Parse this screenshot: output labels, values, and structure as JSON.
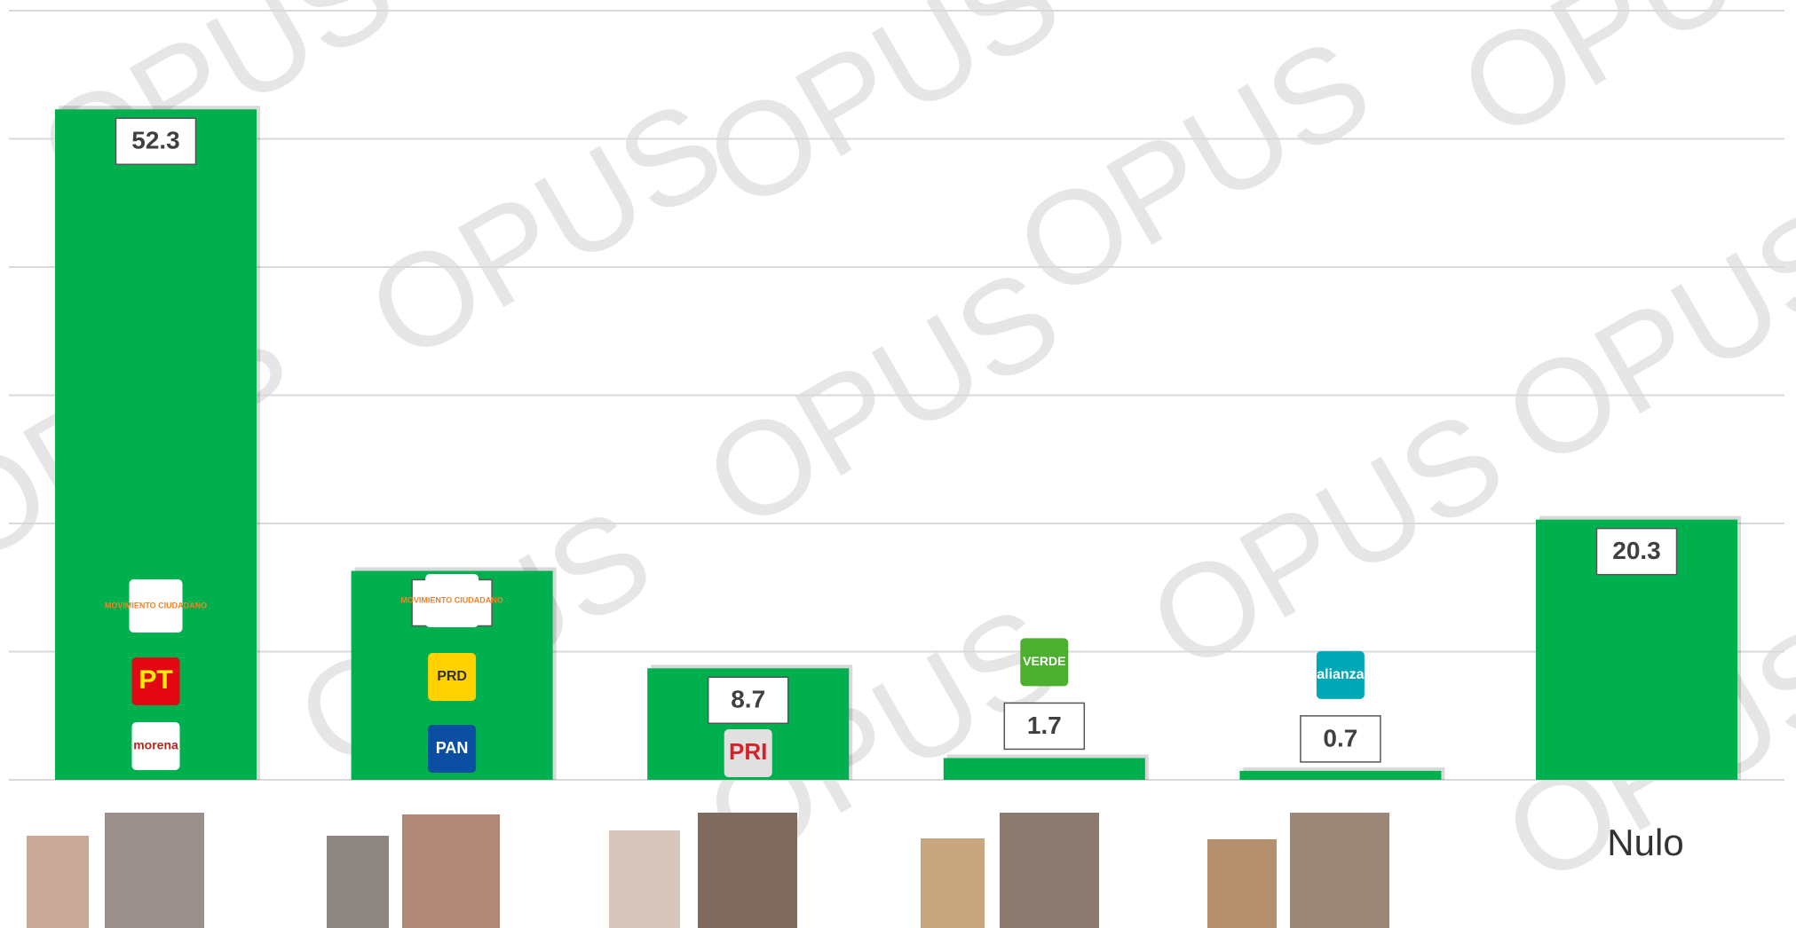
{
  "chart_data": {
    "type": "bar",
    "categories": [
      null,
      null,
      null,
      null,
      null,
      "Nulo"
    ],
    "values": [
      52.3,
      16.3,
      8.7,
      1.7,
      0.7,
      20.3
    ],
    "color": "#00b04f",
    "ylim": [
      0,
      60
    ],
    "yticks": [
      0,
      10,
      20,
      30,
      40,
      50,
      60
    ],
    "grid": true,
    "logos": [
      [
        "MOVIMIENTO CIUDADANO",
        "PT",
        "morena"
      ],
      [
        "MOVIMIENTO CIUDADANO",
        "PRD",
        "PAN"
      ],
      [
        "PRI"
      ],
      [
        "VERDE"
      ],
      [
        "alianza"
      ],
      []
    ],
    "watermark": "OPUS"
  }
}
